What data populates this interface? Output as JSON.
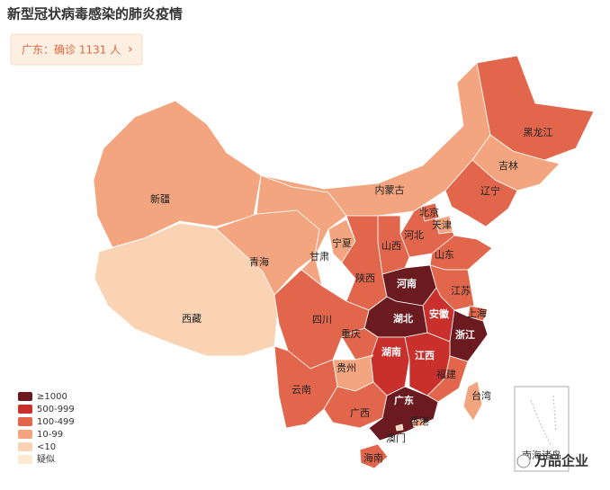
{
  "title": "新型冠状病毒感染的肺炎疫情",
  "badge": {
    "text": "广东：确诊 1131 人",
    "arrow": "›"
  },
  "legend": [
    {
      "label": "≥1000",
      "color": "#6b1a20"
    },
    {
      "label": "500-999",
      "color": "#c9302c"
    },
    {
      "label": "100-499",
      "color": "#e2664b"
    },
    {
      "label": "10-99",
      "color": "#f2a57e"
    },
    {
      "label": "<10",
      "color": "#f9d3b3"
    },
    {
      "label": "疑似",
      "color": "#fbe9d0"
    }
  ],
  "provinces": [
    {
      "name": "新疆",
      "color": "#f2a57e"
    },
    {
      "name": "西藏",
      "color": "#f9d3b3"
    },
    {
      "name": "青海",
      "color": "#f2a57e"
    },
    {
      "name": "甘肃",
      "color": "#f2a57e"
    },
    {
      "name": "内蒙古",
      "color": "#f2a57e"
    },
    {
      "name": "黑龙江",
      "color": "#e2664b"
    },
    {
      "name": "吉林",
      "color": "#f2a57e"
    },
    {
      "name": "辽宁",
      "color": "#e2664b"
    },
    {
      "name": "北京",
      "color": "#e2664b"
    },
    {
      "name": "天津",
      "color": "#f2a57e"
    },
    {
      "name": "河北",
      "color": "#e2664b"
    },
    {
      "name": "山西",
      "color": "#e2664b"
    },
    {
      "name": "山东",
      "color": "#e2664b"
    },
    {
      "name": "宁夏",
      "color": "#f2a57e"
    },
    {
      "name": "陕西",
      "color": "#e2664b"
    },
    {
      "name": "河南",
      "color": "#6b1a20"
    },
    {
      "name": "江苏",
      "color": "#e2664b"
    },
    {
      "name": "安徽",
      "color": "#c9302c"
    },
    {
      "name": "上海",
      "color": "#e2664b"
    },
    {
      "name": "湖北",
      "color": "#6b1a20"
    },
    {
      "name": "浙江",
      "color": "#6b1a20"
    },
    {
      "name": "四川",
      "color": "#e2664b"
    },
    {
      "name": "重庆",
      "color": "#e2664b"
    },
    {
      "name": "湖南",
      "color": "#c9302c"
    },
    {
      "name": "江西",
      "color": "#c9302c"
    },
    {
      "name": "福建",
      "color": "#e2664b"
    },
    {
      "name": "贵州",
      "color": "#f2a57e"
    },
    {
      "name": "云南",
      "color": "#e2664b"
    },
    {
      "name": "广西",
      "color": "#e2664b"
    },
    {
      "name": "广东",
      "color": "#6b1a20"
    },
    {
      "name": "台湾",
      "color": "#f2a57e"
    },
    {
      "name": "海南",
      "color": "#e2664b"
    },
    {
      "name": "香港",
      "color": "#f2a57e"
    },
    {
      "name": "澳门",
      "color": "#f9d3b3"
    }
  ],
  "inset_label": "南海诸岛",
  "watermark": "万品企业"
}
